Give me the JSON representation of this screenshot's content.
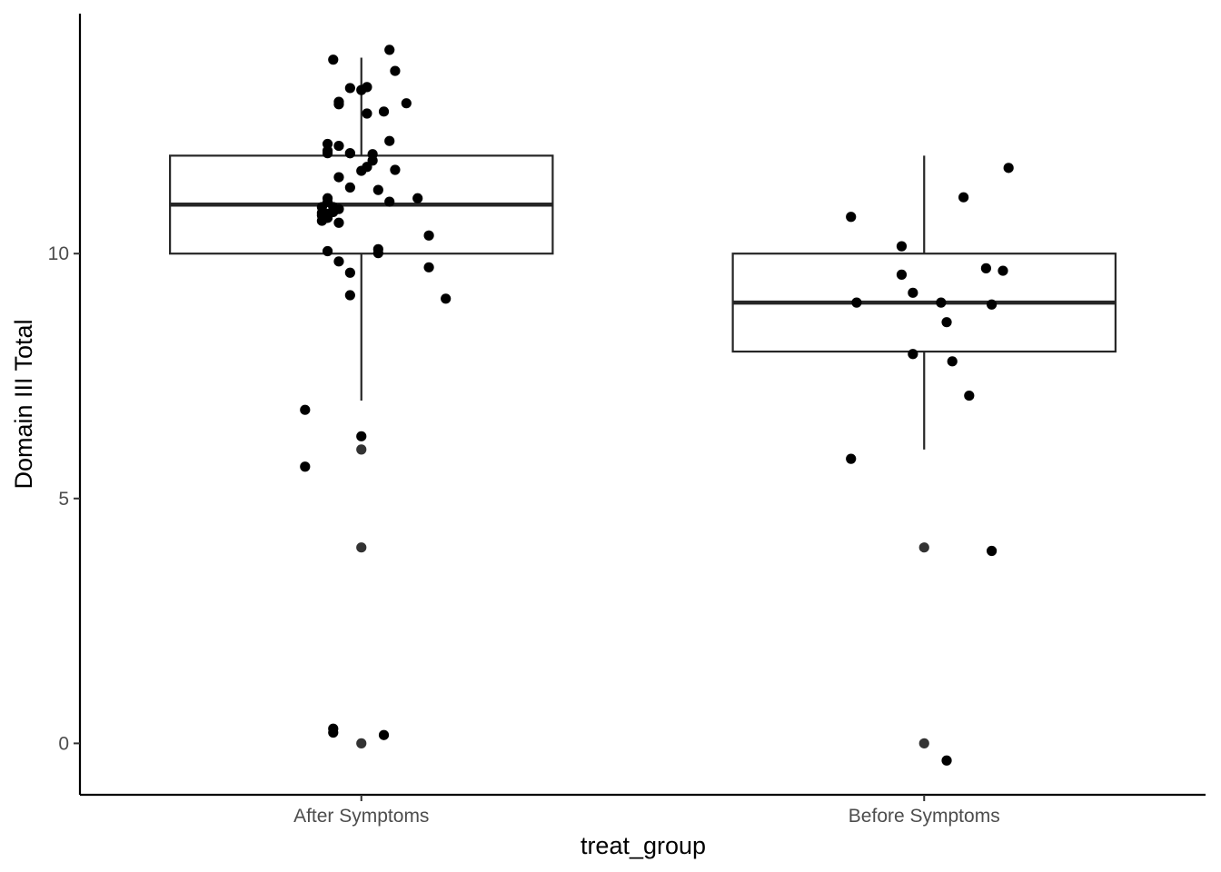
{
  "chart_data": {
    "type": "boxplot",
    "title": "",
    "xlabel": "treat_group",
    "ylabel": "Domain III Total",
    "ylim": [
      -1.05,
      14.9
    ],
    "y_ticks": [
      0,
      5,
      10
    ],
    "y_tick_labels": [
      "0",
      "5",
      "10"
    ],
    "categories": [
      "After Symptoms",
      "Before Symptoms"
    ],
    "grid": false,
    "legend": "none",
    "colors": {
      "box_stroke": "#262626",
      "point": "#000000",
      "outlier": "#333333",
      "axis": "#000000"
    },
    "boxes": [
      {
        "category": "After Symptoms",
        "lower_whisker": 7,
        "q1": 10,
        "median": 11,
        "q3": 12,
        "upper_whisker": 14
      },
      {
        "category": "Before Symptoms",
        "lower_whisker": 6,
        "q1": 8,
        "median": 9,
        "q3": 10,
        "upper_whisker": 12
      }
    ],
    "outliers": [
      {
        "category": "After Symptoms",
        "values": [
          6,
          4,
          0
        ]
      },
      {
        "category": "Before Symptoms",
        "values": [
          4,
          0
        ]
      }
    ],
    "points": [
      {
        "category": "After Symptoms",
        "x": [
          0.05,
          -0.05,
          0.06,
          0.01,
          -0.02,
          0.0,
          -0.04,
          -0.04,
          0.08,
          0.04,
          0.01,
          0.05,
          -0.06,
          -0.04,
          -0.06,
          -0.02,
          -0.06,
          -0.02,
          0.02,
          0.02,
          0.01,
          0.06,
          0.0,
          -0.04,
          -0.02,
          0.03,
          -0.06,
          0.1,
          0.05,
          -0.06,
          -0.05,
          -0.05,
          -0.07,
          -0.07,
          -0.07,
          -0.04,
          -0.04,
          -0.06,
          -0.07,
          -0.06,
          0.12,
          0.03,
          0.03,
          -0.06,
          -0.04,
          0.12,
          -0.02,
          0.15,
          -0.02,
          -0.1,
          -0.0,
          -0.1,
          -0.05,
          -0.05,
          0.04
        ],
        "y": [
          14.16,
          13.96,
          13.73,
          13.4,
          13.38,
          13.34,
          13.1,
          13.05,
          13.07,
          12.9,
          12.86,
          12.3,
          12.24,
          12.2,
          12.1,
          12.05,
          12.05,
          12.05,
          12.03,
          11.9,
          11.77,
          11.71,
          11.69,
          11.56,
          11.35,
          11.3,
          11.13,
          11.13,
          11.06,
          11.05,
          10.95,
          10.85,
          10.83,
          10.78,
          10.67,
          10.91,
          10.63,
          10.81,
          10.95,
          10.73,
          10.37,
          10.09,
          10.01,
          10.05,
          9.84,
          9.72,
          9.61,
          9.08,
          9.15,
          6.81,
          6.27,
          5.65,
          0.3,
          0.22,
          0.17
        ]
      },
      {
        "category": "Before Symptoms",
        "x": [
          0.15,
          0.07,
          -0.13,
          -0.04,
          0.11,
          0.14,
          -0.04,
          -0.12,
          -0.02,
          0.03,
          0.12,
          0.04,
          -0.02,
          0.05,
          0.08,
          -0.13,
          0.12,
          0.04
        ],
        "y": [
          11.75,
          11.15,
          10.75,
          10.15,
          9.7,
          9.65,
          9.57,
          9.0,
          9.2,
          9.0,
          8.96,
          8.6,
          7.95,
          7.8,
          7.1,
          5.81,
          3.93,
          -0.35
        ]
      }
    ]
  }
}
